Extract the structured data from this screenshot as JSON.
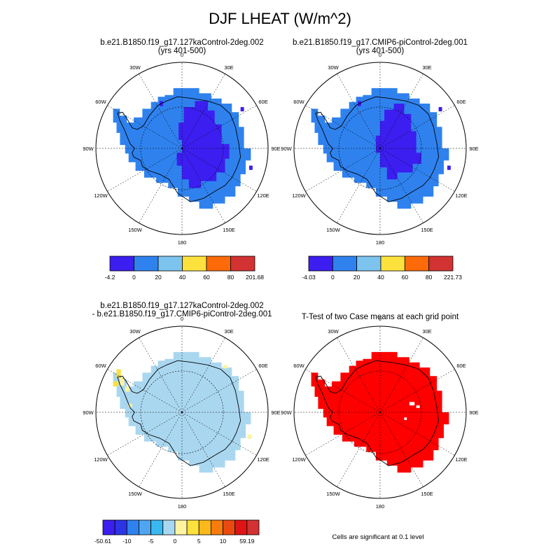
{
  "figure": {
    "title": "DJF LHEAT (W/m^2)",
    "note": "Cells are significant at 0.1 level"
  },
  "chart_data": [
    {
      "type": "heatmap",
      "projection": "south-polar-stereographic",
      "title_line1": "b.e21.B1850.f19_g17.127kaControl-2deg.002",
      "title_line2": "(yrs 401-500)",
      "longitude_labels": [
        "0",
        "30E",
        "60E",
        "90E",
        "120E",
        "150E",
        "180",
        "150W",
        "120W",
        "90W",
        "60W",
        "30W"
      ],
      "colorbar": {
        "labels": [
          "-4.2",
          "0",
          "20",
          "40",
          "60",
          "80",
          "201.68"
        ],
        "colors": [
          "#3c1ef0",
          "#2f82ee",
          "#7cc3ee",
          "#fde13c",
          "#fe6a0a",
          "#d23232"
        ]
      },
      "dominant_values": {
        "interior_east_antarctica": "-4.2 to 0",
        "remaining_continent": "0 to 20"
      }
    },
    {
      "type": "heatmap",
      "projection": "south-polar-stereographic",
      "title_line1": "b.e21.B1850.f19_g17.CMIP6-piControl-2deg.001",
      "title_line2": "(yrs 401-500)",
      "longitude_labels": [
        "0",
        "30E",
        "60E",
        "90E",
        "120E",
        "150E",
        "180",
        "150W",
        "120W",
        "90W",
        "60W",
        "30W"
      ],
      "colorbar": {
        "labels": [
          "-4.03",
          "0",
          "20",
          "40",
          "60",
          "80",
          "221.73"
        ],
        "colors": [
          "#3c1ef0",
          "#2f82ee",
          "#7cc3ee",
          "#fde13c",
          "#fe6a0a",
          "#d23232"
        ]
      },
      "dominant_values": {
        "interior_east_antarctica": "-4.03 to 0",
        "remaining_continent": "0 to 20"
      }
    },
    {
      "type": "heatmap",
      "projection": "south-polar-stereographic",
      "title_line1": "b.e21.B1850.f19_g17.127kaControl-2deg.002",
      "title_line2": "- b.e21.B1850.f19_g17.CMIP6-piControl-2deg.001",
      "longitude_labels": [
        "0",
        "30E",
        "60E",
        "90E",
        "120E",
        "150E",
        "180",
        "150W",
        "120W",
        "90W",
        "60W",
        "30W"
      ],
      "colorbar": {
        "labels": [
          "-50.61",
          "",
          "-10",
          "",
          "-5",
          "",
          "0",
          "",
          "5",
          "",
          "10",
          "",
          "59.19"
        ],
        "colors": [
          "#3c1ef0",
          "#2c35e6",
          "#2f82ee",
          "#4fa5f0",
          "#3ab8f0",
          "#aad7f0",
          "#fef4a0",
          "#fde13c",
          "#fbb81b",
          "#f57c0d",
          "#ea4a0f",
          "#e01414",
          "#d23232"
        ]
      },
      "dominant_values": {
        "most_of_continent": "0 to small positive (light blue)",
        "antarctic_peninsula": "5 to 10"
      }
    },
    {
      "type": "heatmap",
      "projection": "south-polar-stereographic",
      "title_line1": "T-Test of two Case means at each grid point",
      "longitude_labels": [
        "0",
        "30E",
        "60E",
        "90E",
        "120E",
        "150E",
        "180",
        "150W",
        "120W",
        "90W",
        "60W",
        "30W"
      ],
      "significance_color": "#ff0000"
    }
  ]
}
